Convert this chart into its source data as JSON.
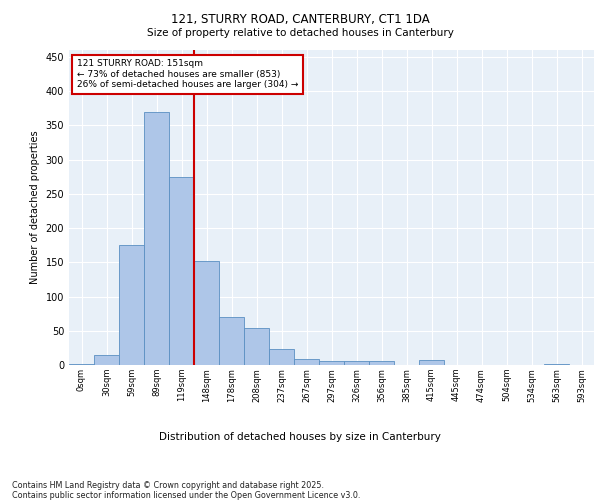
{
  "title_line1": "121, STURRY ROAD, CANTERBURY, CT1 1DA",
  "title_line2": "Size of property relative to detached houses in Canterbury",
  "xlabel": "Distribution of detached houses by size in Canterbury",
  "ylabel": "Number of detached properties",
  "bar_color": "#aec6e8",
  "bar_edge_color": "#5a8fc2",
  "background_color": "#e8f0f8",
  "grid_color": "#ffffff",
  "values": [
    2,
    15,
    175,
    370,
    275,
    152,
    70,
    54,
    23,
    9,
    6,
    6,
    6,
    0,
    7,
    0,
    0,
    0,
    0,
    2,
    0
  ],
  "ylim": [
    0,
    460
  ],
  "yticks": [
    0,
    50,
    100,
    150,
    200,
    250,
    300,
    350,
    400,
    450
  ],
  "vline_x": 4.5,
  "annotation_text": "121 STURRY ROAD: 151sqm\n← 73% of detached houses are smaller (853)\n26% of semi-detached houses are larger (304) →",
  "footer_text": "Contains HM Land Registry data © Crown copyright and database right 2025.\nContains public sector information licensed under the Open Government Licence v3.0.",
  "annotation_box_color": "#cc0000",
  "vline_color": "#cc0000",
  "tick_labels": [
    "0sqm",
    "30sqm",
    "59sqm",
    "89sqm",
    "119sqm",
    "148sqm",
    "178sqm",
    "208sqm",
    "237sqm",
    "267sqm",
    "297sqm",
    "326sqm",
    "356sqm",
    "385sqm",
    "415sqm",
    "445sqm",
    "474sqm",
    "504sqm",
    "534sqm",
    "563sqm",
    "593sqm"
  ]
}
